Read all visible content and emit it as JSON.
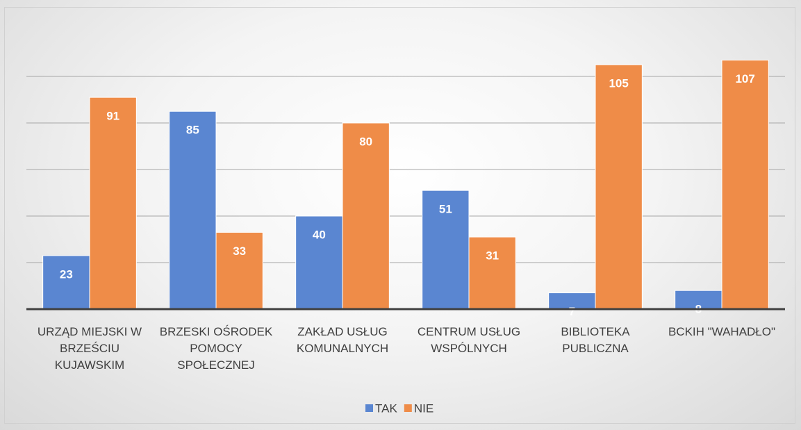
{
  "chart_data": {
    "type": "bar",
    "categories": [
      "URZĄD MIEJSKI W BRZEŚCIU KUJAWSKIM",
      "BRZESKI OŚRODEK POMOCY SPOŁECZNEJ",
      "ZAKŁAD USŁUG KOMUNALNYCH",
      "CENTRUM USŁUG WSPÓLNYCH",
      "BIBLIOTEKA PUBLICZNA",
      "BCKIH \"WAHADŁO\""
    ],
    "series": [
      {
        "name": "TAK",
        "color": "#5a86d1",
        "values": [
          23,
          85,
          40,
          51,
          7,
          8
        ]
      },
      {
        "name": "NIE",
        "color": "#ef8c48",
        "values": [
          91,
          33,
          80,
          31,
          105,
          107
        ]
      }
    ],
    "ylim": [
      0,
      120
    ],
    "yticks": [
      0,
      20,
      40,
      60,
      80,
      100
    ],
    "grid": true,
    "legend": "bottom"
  }
}
